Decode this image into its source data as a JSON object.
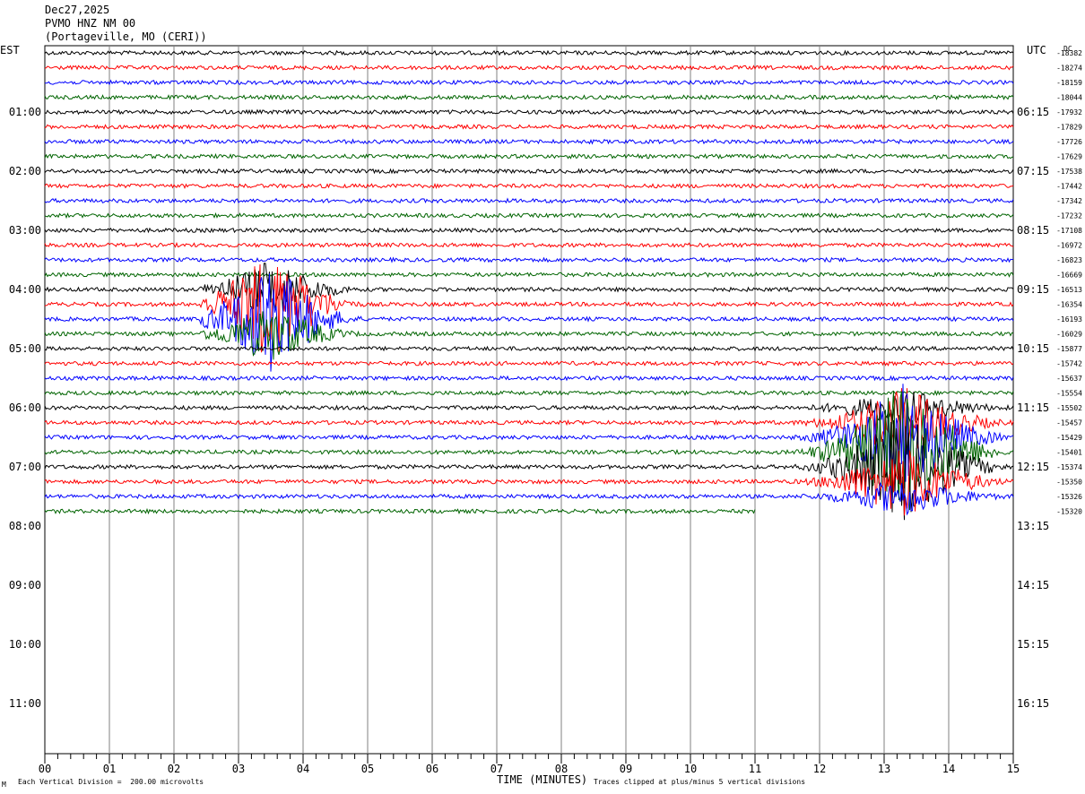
{
  "header": {
    "date": "Dec27,2025",
    "station": "PVMO HNZ NM 00",
    "location": "(Portageville, MO (CERI))"
  },
  "left_axis_title": "EST",
  "right_axis_title": "UTC",
  "dc_label": "DC",
  "footer": {
    "scale_note": "Each Vertical Division =  200.00 microvolts",
    "clip_note": "Traces clipped at plus/minus 5 vertical divisions",
    "corner_mark": "M"
  },
  "colors": {
    "trace_cycle": [
      "#000000",
      "#ff0000",
      "#0000ff",
      "#006400"
    ],
    "grid": "#808080"
  },
  "chart_data": {
    "type": "line",
    "title": "PVMO HNZ NM 00",
    "xlabel": "TIME (MINUTES)",
    "ylabel": "",
    "x_ticks": [
      "00",
      "01",
      "02",
      "03",
      "04",
      "05",
      "06",
      "07",
      "08",
      "09",
      "10",
      "11",
      "12",
      "13",
      "14",
      "15"
    ],
    "xlim": [
      0,
      15
    ],
    "minutes_per_line": 15,
    "lines_recorded": 32,
    "last_line_end_minute": 11,
    "est_hour_labels": [
      "01:00",
      "02:00",
      "03:00",
      "04:00",
      "05:00",
      "06:00",
      "07:00",
      "08:00",
      "09:00",
      "10:00",
      "11:00"
    ],
    "utc_hour_labels": [
      "06:15",
      "07:15",
      "08:15",
      "09:15",
      "10:15",
      "11:15",
      "12:15",
      "13:15",
      "14:15",
      "15:15",
      "16:15"
    ],
    "dc_offsets": [
      -18382,
      -18274,
      -18159,
      -18044,
      -17932,
      -17829,
      -17726,
      -17629,
      -17538,
      -17442,
      -17342,
      -17232,
      -17108,
      -16972,
      -16823,
      -16669,
      -16513,
      -16354,
      -16193,
      -16029,
      -15877,
      -15742,
      -15637,
      -15554,
      -15502,
      -15457,
      -15429,
      -15401,
      -15374,
      -15350,
      -15326,
      -15320
    ],
    "events": [
      {
        "start_line": 16,
        "end_line": 19,
        "start_minute": 2.4,
        "end_minute": 5.5,
        "peak_minute": 3.5,
        "color": "red"
      },
      {
        "start_line": 24,
        "end_line": 30,
        "start_minute": 11.3,
        "end_minute": 15.0,
        "peak_minute": 13.3,
        "color": "black"
      }
    ]
  }
}
